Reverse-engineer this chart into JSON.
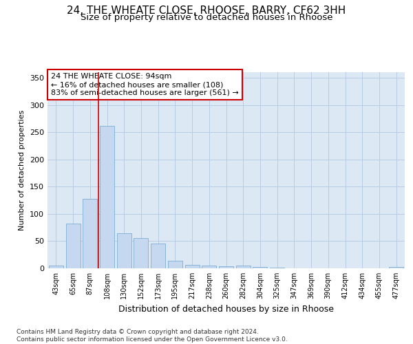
{
  "title": "24, THE WHEATE CLOSE, RHOOSE, BARRY, CF62 3HH",
  "subtitle": "Size of property relative to detached houses in Rhoose",
  "xlabel": "Distribution of detached houses by size in Rhoose",
  "ylabel": "Number of detached properties",
  "categories": [
    "43sqm",
    "65sqm",
    "87sqm",
    "108sqm",
    "130sqm",
    "152sqm",
    "173sqm",
    "195sqm",
    "217sqm",
    "238sqm",
    "260sqm",
    "282sqm",
    "304sqm",
    "325sqm",
    "347sqm",
    "369sqm",
    "390sqm",
    "412sqm",
    "434sqm",
    "455sqm",
    "477sqm"
  ],
  "values": [
    5,
    82,
    127,
    262,
    65,
    55,
    45,
    14,
    6,
    5,
    4,
    5,
    2,
    1,
    0,
    0,
    0,
    0,
    0,
    0,
    2
  ],
  "bar_color": "#c5d8f0",
  "bar_edgecolor": "#7aadd4",
  "vline_x": 2.5,
  "vline_color": "#cc0000",
  "annotation_text": "24 THE WHEATE CLOSE: 94sqm\n← 16% of detached houses are smaller (108)\n83% of semi-detached houses are larger (561) →",
  "annotation_box_color": "#ffffff",
  "annotation_box_edgecolor": "#cc0000",
  "ylim": [
    0,
    360
  ],
  "yticks": [
    0,
    50,
    100,
    150,
    200,
    250,
    300,
    350
  ],
  "facecolor": "#dde8f5",
  "grid_color": "#b8cce4",
  "title_fontsize": 11,
  "subtitle_fontsize": 9.5,
  "xlabel_fontsize": 9,
  "ylabel_fontsize": 8,
  "footer": "Contains HM Land Registry data © Crown copyright and database right 2024.\nContains public sector information licensed under the Open Government Licence v3.0."
}
